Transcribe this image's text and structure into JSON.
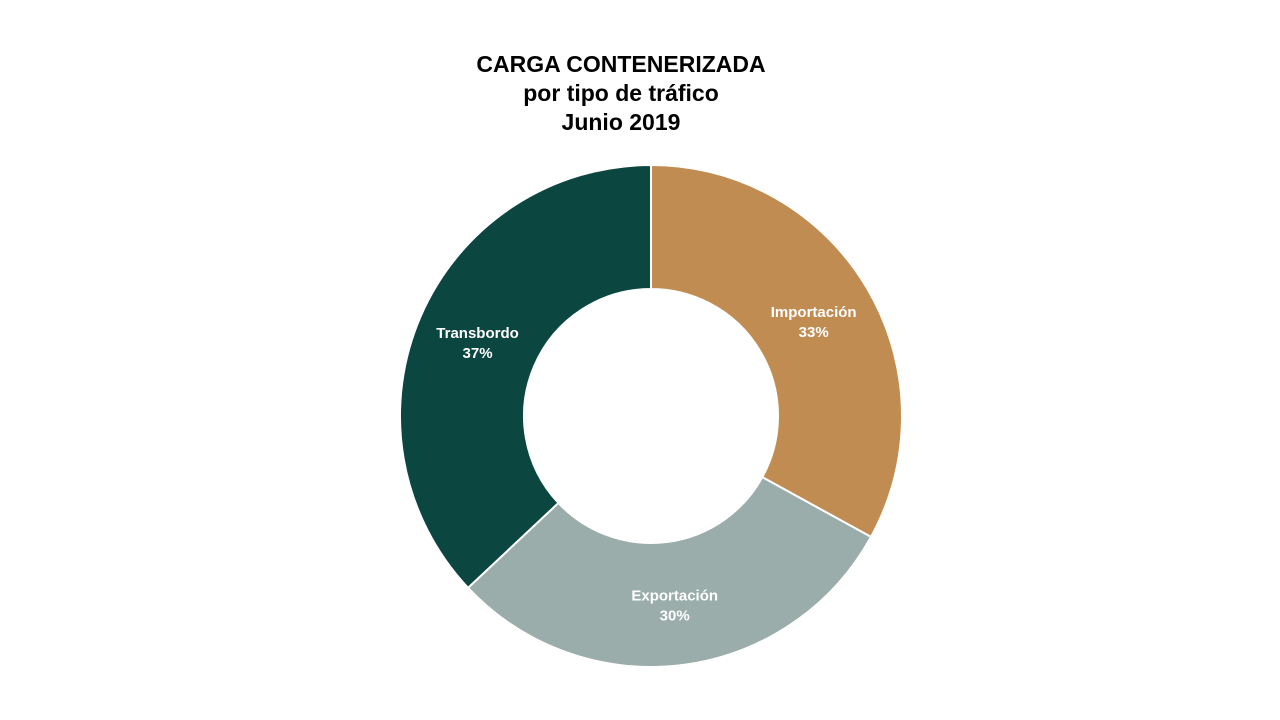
{
  "chart_data": {
    "type": "pie",
    "variant": "donut",
    "title": [
      "CARGA CONTENERIZADA",
      "por tipo de tráfico",
      "Junio 2019"
    ],
    "categories": [
      "Importación",
      "Exportación",
      "Transbordo"
    ],
    "values": [
      33,
      30,
      37
    ],
    "value_labels": [
      "33%",
      "30%",
      "37%"
    ],
    "colors": [
      "#C18C52",
      "#9AADAA",
      "#0B4640"
    ],
    "start": "12 o'clock, clockwise",
    "legend": "none"
  }
}
